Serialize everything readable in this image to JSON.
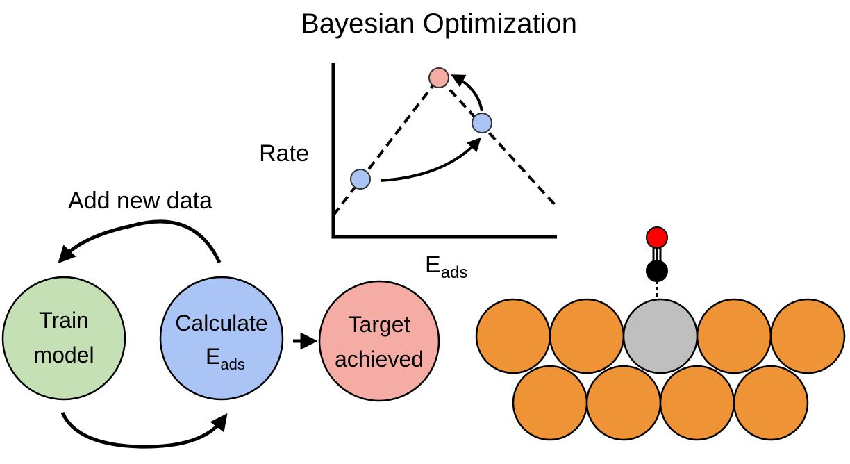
{
  "title": "Bayesian Optimization",
  "plot": {
    "ylabel": "Rate",
    "xlabel_main": "E",
    "xlabel_sub": "ads"
  },
  "loop": {
    "add_data_label": "Add new data",
    "train": {
      "line1": "Train",
      "line2": "model",
      "color": "#c5e0b4"
    },
    "calculate": {
      "line1": "Calculate",
      "line2_main": "E",
      "line2_sub": "ads",
      "color": "#a9c4f5"
    },
    "target": {
      "line1": "Target",
      "line2": "achieved",
      "color": "#f4aca5"
    }
  },
  "colors": {
    "metal_atom": "#ee9336",
    "site_atom": "#bfbfbf",
    "carbon_atom": "#000000",
    "oxygen_atom": "#ff0000",
    "point_blue": "#a9c4f5",
    "point_pink": "#f4aca5"
  }
}
